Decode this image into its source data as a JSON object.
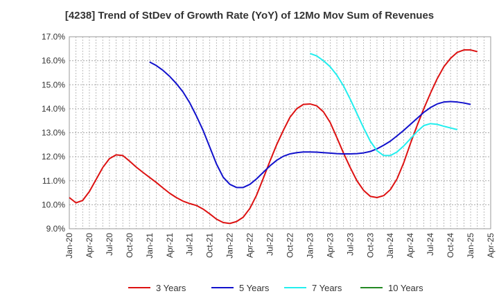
{
  "chart_data": {
    "type": "line",
    "title": "[4238]  Trend of StDev of Growth Rate (YoY) of 12Mo Mov Sum of Revenues",
    "xlabel": "",
    "ylabel": "",
    "ylim": [
      9.0,
      17.0
    ],
    "y_ticks": [
      "9.0%",
      "10.0%",
      "11.0%",
      "12.0%",
      "13.0%",
      "14.0%",
      "15.0%",
      "16.0%",
      "17.0%"
    ],
    "x_ticks": [
      "Jan-20",
      "Apr-20",
      "Jul-20",
      "Oct-20",
      "Jan-21",
      "Apr-21",
      "Jul-21",
      "Oct-21",
      "Jan-22",
      "Apr-22",
      "Jul-22",
      "Oct-22",
      "Jan-23",
      "Apr-23",
      "Jul-23",
      "Oct-23",
      "Jan-24",
      "Apr-24",
      "Jul-24",
      "Oct-24",
      "Jan-25",
      "Apr-25"
    ],
    "grid": true,
    "legend_position": "bottom",
    "series": [
      {
        "name": "3 Years",
        "color": "#dd1111",
        "start_month_index": 0,
        "values": [
          10.3,
          10.08,
          10.18,
          10.55,
          11.05,
          11.55,
          11.92,
          12.08,
          12.05,
          11.82,
          11.57,
          11.35,
          11.14,
          10.93,
          10.7,
          10.48,
          10.3,
          10.15,
          10.05,
          9.97,
          9.82,
          9.62,
          9.4,
          9.26,
          9.22,
          9.3,
          9.48,
          9.85,
          10.4,
          11.1,
          11.82,
          12.5,
          13.1,
          13.65,
          14.0,
          14.18,
          14.2,
          14.12,
          13.87,
          13.43,
          12.8,
          12.15,
          11.55,
          11.0,
          10.6,
          10.35,
          10.3,
          10.38,
          10.63,
          11.08,
          11.75,
          12.55,
          13.3,
          14.0,
          14.65,
          15.25,
          15.75,
          16.1,
          16.35,
          16.45,
          16.45,
          16.38
        ]
      },
      {
        "name": "5 Years",
        "color": "#1111cc",
        "start_month_index": 12,
        "values": [
          15.95,
          15.8,
          15.6,
          15.35,
          15.05,
          14.7,
          14.25,
          13.7,
          13.1,
          12.4,
          11.7,
          11.15,
          10.85,
          10.72,
          10.72,
          10.85,
          11.08,
          11.35,
          11.62,
          11.85,
          12.02,
          12.12,
          12.17,
          12.2,
          12.2,
          12.19,
          12.17,
          12.15,
          12.13,
          12.12,
          12.12,
          12.13,
          12.16,
          12.22,
          12.33,
          12.48,
          12.65,
          12.87,
          13.1,
          13.35,
          13.6,
          13.85,
          14.05,
          14.2,
          14.28,
          14.3,
          14.28,
          14.24,
          14.18
        ]
      },
      {
        "name": "7 Years",
        "color": "#22eeee",
        "start_month_index": 36,
        "values": [
          16.3,
          16.2,
          16.0,
          15.75,
          15.4,
          14.95,
          14.4,
          13.8,
          13.2,
          12.65,
          12.25,
          12.05,
          12.05,
          12.2,
          12.45,
          12.75,
          13.05,
          13.3,
          13.38,
          13.35,
          13.27,
          13.2,
          13.13
        ]
      },
      {
        "name": "10 Years",
        "color": "#228822",
        "start_month_index": 0,
        "values": []
      }
    ]
  }
}
